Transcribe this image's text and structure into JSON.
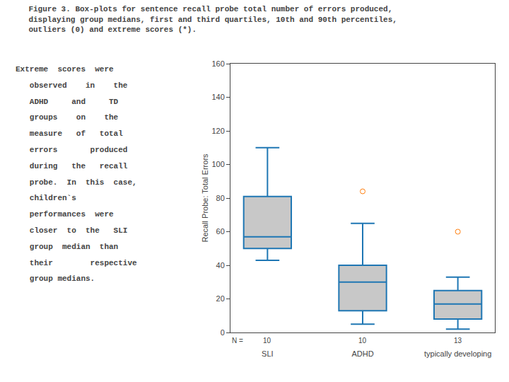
{
  "chart_data": {
    "type": "box",
    "title": [
      "Figure 3. Box-plots for sentence recall probe total number of errors produced,",
      "displaying group medians, first and third quartiles, 10th and 90th percentiles,",
      "outliers (0) and extreme scores (*)."
    ],
    "annotations": [
      "Extreme  scores  were",
      "   observed    in    the",
      "   ADHD     and     TD",
      "   groups    on    the",
      "   measure   of   total",
      "   errors       produced",
      "   during   the   recall",
      "   probe.  In  this  case,",
      "   children`s",
      "   performances  were",
      "   closer  to  the   SLI",
      "   group  median  than",
      "   their        respective",
      "   group medians."
    ],
    "categories": [
      "SLI",
      "ADHD",
      "typically developing"
    ],
    "n_label": "N =",
    "n_values": [
      10,
      10,
      13
    ],
    "median": [
      57,
      30,
      17
    ],
    "q1": [
      50,
      13,
      8
    ],
    "q3": [
      81,
      40,
      25
    ],
    "whislo": [
      43,
      5,
      2
    ],
    "whishi": [
      110,
      65,
      33
    ],
    "fliers": [
      [],
      [
        84
      ],
      [
        60
      ]
    ],
    "ylabel": "Recall Probe: Total Errors",
    "ylim": [
      0,
      160
    ],
    "yticks": [
      0,
      20,
      40,
      60,
      80,
      100,
      120,
      140,
      160
    ],
    "color": "#c8c8c8",
    "marker": "circle-open",
    "grid": false
  }
}
